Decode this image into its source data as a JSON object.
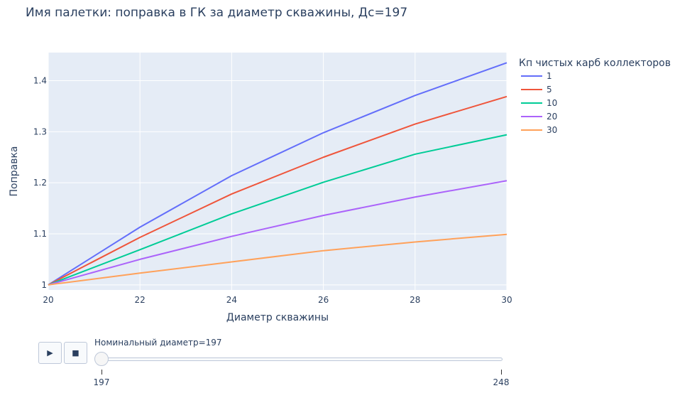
{
  "title": "Имя палетки: поправка в ГК за диаметр скважины, Дс=197",
  "chart_data": {
    "type": "line",
    "title": "Имя палетки: поправка в ГК за диаметр скважины, Дс=197",
    "xlabel": "Диаметр скважины",
    "ylabel": "Поправка",
    "xlim": [
      20,
      30
    ],
    "ylim": [
      0.99,
      1.455
    ],
    "x_ticks": [
      20,
      22,
      24,
      26,
      28,
      30
    ],
    "y_ticks": [
      1,
      1.1,
      1.2,
      1.3,
      1.4
    ],
    "y_tick_labels": [
      "1",
      "1.1",
      "1.2",
      "1.3",
      "1.4"
    ],
    "x": [
      20,
      22,
      24,
      26,
      28,
      30
    ],
    "grid": true,
    "legend_title": "Кп чистых карб коллекторов",
    "legend_position": "right",
    "series": [
      {
        "name": "1",
        "color": "#636efa",
        "values": [
          1.0,
          1.113,
          1.214,
          1.298,
          1.371,
          1.435
        ]
      },
      {
        "name": "5",
        "color": "#EF553B",
        "values": [
          1.0,
          1.093,
          1.178,
          1.25,
          1.315,
          1.369
        ]
      },
      {
        "name": "10",
        "color": "#00cc96",
        "values": [
          1.0,
          1.069,
          1.139,
          1.201,
          1.256,
          1.294
        ]
      },
      {
        "name": "20",
        "color": "#ab63fa",
        "values": [
          1.0,
          1.05,
          1.095,
          1.136,
          1.172,
          1.204
        ]
      },
      {
        "name": "30",
        "color": "#FFA15A",
        "values": [
          1.0,
          1.023,
          1.045,
          1.067,
          1.084,
          1.099
        ]
      }
    ]
  },
  "controls": {
    "play_icon": "play-icon",
    "stop_icon": "stop-icon",
    "play_glyph": "▶",
    "stop_glyph": "■"
  },
  "slider": {
    "label": "Номинальный диаметр=197",
    "value": 197,
    "min": 197,
    "max": 248,
    "tick_labels": [
      "197",
      "248"
    ]
  }
}
